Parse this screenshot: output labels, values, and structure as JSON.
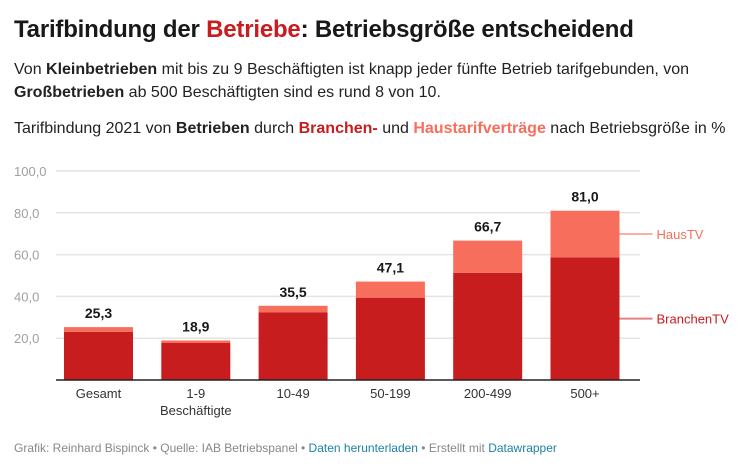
{
  "title": {
    "pre": "Tarifbindung der ",
    "highlight": "Betriebe",
    "post": ": Betriebsgröße entscheidend"
  },
  "subtitle": {
    "p1": "Von ",
    "b1": "Kleinbetrieben",
    "p2": " mit bis zu 9 Beschäftigten ist knapp jeder fünfte Betrieb tarifgebunden, von ",
    "b2": "Großbetrieben",
    "p3": " ab 500 Beschäftigten sind es rund 8 von 10."
  },
  "description": {
    "p1": "Tarifbindung 2021 von ",
    "b1": "Betrieben",
    "p2": " durch ",
    "red": "Branchen-",
    "p3": " und ",
    "salmon": "Haustarifverträge",
    "p4": " nach Betriebsgröße in %"
  },
  "chart_data": {
    "type": "bar",
    "stacked": true,
    "categories": [
      "Gesamt",
      "1-9\nBeschäftigte",
      "10-49",
      "50-199",
      "200-499",
      "500+"
    ],
    "series": [
      {
        "name": "BranchenTV",
        "color": "#c81d1f",
        "values": [
          23.0,
          17.7,
          32.3,
          39.4,
          51.3,
          58.7
        ]
      },
      {
        "name": "HausTV",
        "color": "#f76e5c",
        "values": [
          2.3,
          1.2,
          3.2,
          7.7,
          15.4,
          22.3
        ]
      }
    ],
    "totals": [
      25.3,
      18.9,
      35.5,
      47.1,
      66.7,
      81.0
    ],
    "total_labels": [
      "25,3",
      "18,9",
      "35,5",
      "47,1",
      "66,7",
      "81,0"
    ],
    "yticks": [
      20,
      40,
      60,
      80,
      100
    ],
    "ytick_labels": [
      "20,0",
      "40,0",
      "60,0",
      "80,0",
      "100,0"
    ],
    "ylim": [
      0,
      100
    ],
    "grid": true,
    "legend": "right, inline labels"
  },
  "footer": {
    "text1": "Grafik: Reinhard Bispinck • Quelle: IAB Betriebspanel • ",
    "link1": "Daten herunterladen",
    "text2": " • Erstellt mit ",
    "link2": "Datawrapper"
  }
}
